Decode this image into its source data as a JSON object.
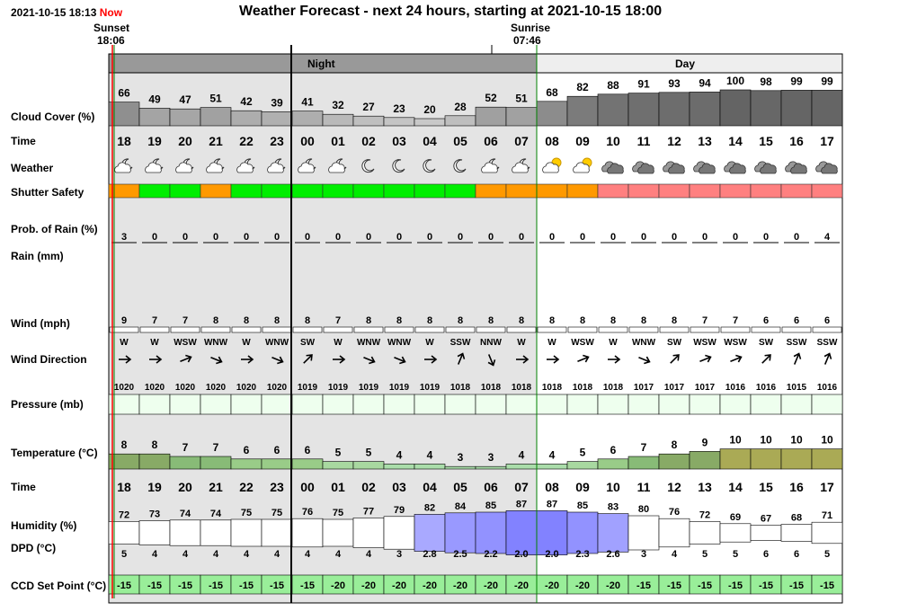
{
  "header": {
    "timestamp": "2021-10-15 18:13",
    "now_label": "Now",
    "title": "Weather Forecast - next 24 hours, starting at 2021-10-15 18:00",
    "sunset_label": "Sunset",
    "sunset_time": "18:06",
    "sunrise_label": "Sunrise",
    "sunrise_time": "07:46",
    "night_label": "Night",
    "day_label": "Day"
  },
  "row_labels": {
    "cloud_cover": "Cloud Cover (%)",
    "time": "Time",
    "weather": "Weather",
    "shutter": "Shutter Safety",
    "rain_prob": "Prob. of Rain (%)",
    "rain": "Rain (mm)",
    "wind": "Wind (mph)",
    "wind_dir": "Wind Direction",
    "pressure": "Pressure (mb)",
    "temperature": "Temperature (°C)",
    "time2": "Time",
    "humidity": "Humidity (%)",
    "dpd": "DPD (°C)",
    "ccd": "CCD Set Point (°C)"
  },
  "colors": {
    "night_bg": "#e4e4e4",
    "shutter_safe": "#00ee00",
    "shutter_marginal": "#ff9900",
    "shutter_unsafe": "#ff8080",
    "now_line": "#ff0000",
    "sunset_line": "#008000",
    "ccd_bg": "#99ee99"
  },
  "hours": [
    {
      "time": "18",
      "cloud": 66,
      "weather": "partly-cloudy-night-icon",
      "shutter": "marginal",
      "rain_prob": 3,
      "wind": 9,
      "wind_dir": "W",
      "pressure": 1020,
      "temp": 8,
      "humidity": 72,
      "dpd": "5",
      "ccd": "-15"
    },
    {
      "time": "19",
      "cloud": 49,
      "weather": "partly-cloudy-night-icon",
      "shutter": "safe",
      "rain_prob": 0,
      "wind": 7,
      "wind_dir": "W",
      "pressure": 1020,
      "temp": 8,
      "humidity": 73,
      "dpd": "4",
      "ccd": "-15"
    },
    {
      "time": "20",
      "cloud": 47,
      "weather": "partly-cloudy-night-icon",
      "shutter": "safe",
      "rain_prob": 0,
      "wind": 7,
      "wind_dir": "WSW",
      "pressure": 1020,
      "temp": 7,
      "humidity": 74,
      "dpd": "4",
      "ccd": "-15"
    },
    {
      "time": "21",
      "cloud": 51,
      "weather": "partly-cloudy-night-icon",
      "shutter": "marginal",
      "rain_prob": 0,
      "wind": 8,
      "wind_dir": "WNW",
      "pressure": 1020,
      "temp": 7,
      "humidity": 74,
      "dpd": "4",
      "ccd": "-15"
    },
    {
      "time": "22",
      "cloud": 42,
      "weather": "partly-cloudy-night-icon",
      "shutter": "safe",
      "rain_prob": 0,
      "wind": 8,
      "wind_dir": "W",
      "pressure": 1020,
      "temp": 6,
      "humidity": 75,
      "dpd": "4",
      "ccd": "-15"
    },
    {
      "time": "23",
      "cloud": 39,
      "weather": "partly-cloudy-night-icon",
      "shutter": "safe",
      "rain_prob": 0,
      "wind": 8,
      "wind_dir": "WNW",
      "pressure": 1020,
      "temp": 6,
      "humidity": 75,
      "dpd": "4",
      "ccd": "-15"
    },
    {
      "time": "00",
      "cloud": 41,
      "weather": "partly-cloudy-night-icon",
      "shutter": "safe",
      "rain_prob": 0,
      "wind": 8,
      "wind_dir": "SW",
      "pressure": 1019,
      "temp": 6,
      "humidity": 76,
      "dpd": "4",
      "ccd": "-15"
    },
    {
      "time": "01",
      "cloud": 32,
      "weather": "partly-cloudy-night-icon",
      "shutter": "safe",
      "rain_prob": 0,
      "wind": 7,
      "wind_dir": "W",
      "pressure": 1019,
      "temp": 5,
      "humidity": 75,
      "dpd": "4",
      "ccd": "-20"
    },
    {
      "time": "02",
      "cloud": 27,
      "weather": "clear-night-icon",
      "shutter": "safe",
      "rain_prob": 0,
      "wind": 8,
      "wind_dir": "WNW",
      "pressure": 1019,
      "temp": 5,
      "humidity": 77,
      "dpd": "4",
      "ccd": "-20"
    },
    {
      "time": "03",
      "cloud": 23,
      "weather": "clear-night-icon",
      "shutter": "safe",
      "rain_prob": 0,
      "wind": 8,
      "wind_dir": "WNW",
      "pressure": 1019,
      "temp": 4,
      "humidity": 79,
      "dpd": "3",
      "ccd": "-20"
    },
    {
      "time": "04",
      "cloud": 20,
      "weather": "clear-night-icon",
      "shutter": "safe",
      "rain_prob": 0,
      "wind": 8,
      "wind_dir": "W",
      "pressure": 1019,
      "temp": 4,
      "humidity": 82,
      "dpd": "2.8",
      "ccd": "-20"
    },
    {
      "time": "05",
      "cloud": 28,
      "weather": "clear-night-icon",
      "shutter": "safe",
      "rain_prob": 0,
      "wind": 8,
      "wind_dir": "SSW",
      "pressure": 1018,
      "temp": 3,
      "humidity": 84,
      "dpd": "2.5",
      "ccd": "-20"
    },
    {
      "time": "06",
      "cloud": 52,
      "weather": "partly-cloudy-night-icon",
      "shutter": "marginal",
      "rain_prob": 0,
      "wind": 8,
      "wind_dir": "NNW",
      "pressure": 1018,
      "temp": 3,
      "humidity": 85,
      "dpd": "2.2",
      "ccd": "-20"
    },
    {
      "time": "07",
      "cloud": 51,
      "weather": "partly-cloudy-night-icon",
      "shutter": "marginal",
      "rain_prob": 0,
      "wind": 8,
      "wind_dir": "W",
      "pressure": 1018,
      "temp": 4,
      "humidity": 87,
      "dpd": "2.0",
      "ccd": "-20"
    },
    {
      "time": "08",
      "cloud": 68,
      "weather": "partly-cloudy-day-icon",
      "shutter": "marginal",
      "rain_prob": 0,
      "wind": 8,
      "wind_dir": "W",
      "pressure": 1018,
      "temp": 4,
      "humidity": 87,
      "dpd": "2.0",
      "ccd": "-20"
    },
    {
      "time": "09",
      "cloud": 82,
      "weather": "partly-cloudy-day-icon",
      "shutter": "marginal",
      "rain_prob": 0,
      "wind": 8,
      "wind_dir": "WSW",
      "pressure": 1018,
      "temp": 5,
      "humidity": 85,
      "dpd": "2.3",
      "ccd": "-20"
    },
    {
      "time": "10",
      "cloud": 88,
      "weather": "cloudy-icon",
      "shutter": "unsafe",
      "rain_prob": 0,
      "wind": 8,
      "wind_dir": "W",
      "pressure": 1018,
      "temp": 6,
      "humidity": 83,
      "dpd": "2.6",
      "ccd": "-20"
    },
    {
      "time": "11",
      "cloud": 91,
      "weather": "cloudy-icon",
      "shutter": "unsafe",
      "rain_prob": 0,
      "wind": 8,
      "wind_dir": "WNW",
      "pressure": 1017,
      "temp": 7,
      "humidity": 80,
      "dpd": "3",
      "ccd": "-15"
    },
    {
      "time": "12",
      "cloud": 93,
      "weather": "cloudy-icon",
      "shutter": "unsafe",
      "rain_prob": 0,
      "wind": 8,
      "wind_dir": "SW",
      "pressure": 1017,
      "temp": 8,
      "humidity": 76,
      "dpd": "4",
      "ccd": "-15"
    },
    {
      "time": "13",
      "cloud": 94,
      "weather": "cloudy-icon",
      "shutter": "unsafe",
      "rain_prob": 0,
      "wind": 7,
      "wind_dir": "WSW",
      "pressure": 1017,
      "temp": 9,
      "humidity": 72,
      "dpd": "5",
      "ccd": "-15"
    },
    {
      "time": "14",
      "cloud": 100,
      "weather": "cloudy-icon",
      "shutter": "unsafe",
      "rain_prob": 0,
      "wind": 7,
      "wind_dir": "WSW",
      "pressure": 1016,
      "temp": 10,
      "humidity": 69,
      "dpd": "5",
      "ccd": "-15"
    },
    {
      "time": "15",
      "cloud": 98,
      "weather": "cloudy-icon",
      "shutter": "unsafe",
      "rain_prob": 0,
      "wind": 6,
      "wind_dir": "SW",
      "pressure": 1016,
      "temp": 10,
      "humidity": 67,
      "dpd": "6",
      "ccd": "-15"
    },
    {
      "time": "16",
      "cloud": 99,
      "weather": "cloudy-icon",
      "shutter": "unsafe",
      "rain_prob": 0,
      "wind": 6,
      "wind_dir": "SSW",
      "pressure": 1015,
      "temp": 10,
      "humidity": 68,
      "dpd": "6",
      "ccd": "-15"
    },
    {
      "time": "17",
      "cloud": 99,
      "weather": "cloudy-icon",
      "shutter": "unsafe",
      "rain_prob": 4,
      "wind": 6,
      "wind_dir": "SSW",
      "pressure": 1016,
      "temp": 10,
      "humidity": 71,
      "dpd": "5",
      "ccd": "-15"
    }
  ]
}
